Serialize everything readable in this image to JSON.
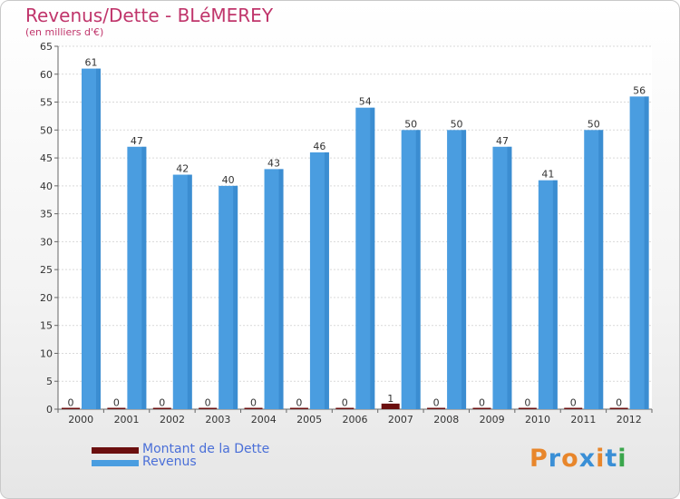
{
  "chart_data": {
    "type": "bar",
    "title": "Revenus/Dette - BLéMEREY",
    "subtitle": "(en milliers d'€)",
    "categories": [
      "2000",
      "2001",
      "2002",
      "2003",
      "2004",
      "2005",
      "2006",
      "2007",
      "2008",
      "2009",
      "2010",
      "2011",
      "2012"
    ],
    "series": [
      {
        "name": "Montant de la Dette",
        "color": "#6b0f0f",
        "values": [
          0,
          0,
          0,
          0,
          0,
          0,
          0,
          1,
          0,
          0,
          0,
          0,
          0
        ]
      },
      {
        "name": "Revenus",
        "color": "#4a9de0",
        "values": [
          61,
          47,
          42,
          40,
          43,
          46,
          54,
          50,
          50,
          47,
          41,
          50,
          56
        ]
      }
    ],
    "ylim": [
      0,
      65
    ],
    "yticks": [
      0,
      5,
      10,
      15,
      20,
      25,
      30,
      35,
      40,
      45,
      50,
      55,
      60,
      65
    ],
    "grid": true,
    "legend": "bottom-left"
  },
  "legend": {
    "items": [
      {
        "label": "Montant de la Dette",
        "color": "#6b0f0f"
      },
      {
        "label": "Revenus",
        "color": "#4a9de0"
      }
    ]
  },
  "logo": {
    "text": "Proxiti",
    "colors": [
      "#e8862b",
      "#3a8fd6",
      "#e8862b",
      "#3a8fd6",
      "#e8862b",
      "#3a8fd6",
      "#3aa64c"
    ]
  }
}
